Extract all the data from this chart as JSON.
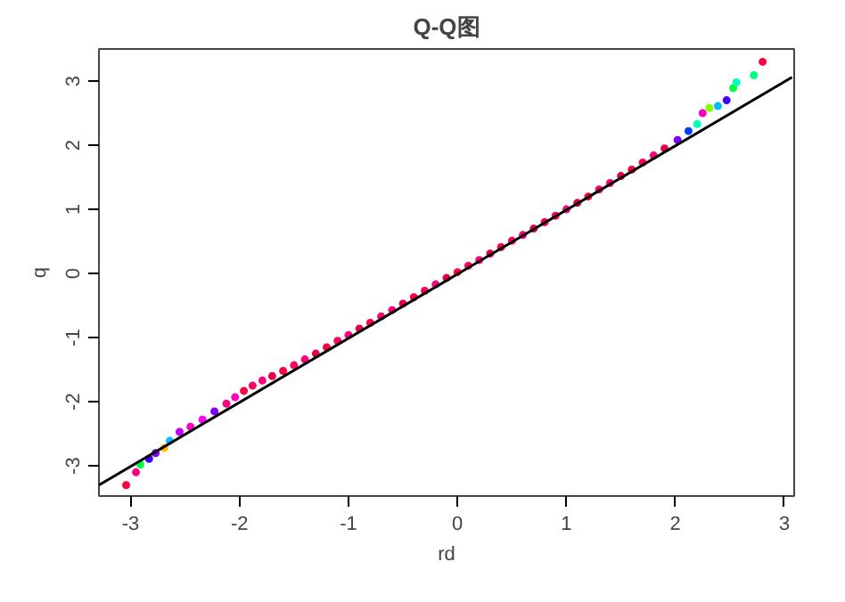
{
  "chart_data": {
    "type": "scatter",
    "title": "Q-Q图",
    "xlabel": "rd",
    "ylabel": "q",
    "xlim": [
      -3.29,
      3.09
    ],
    "ylim": [
      -3.47,
      3.5
    ],
    "xticks": [
      -3,
      -2,
      -1,
      0,
      1,
      2,
      3
    ],
    "yticks": [
      -3,
      -2,
      -1,
      0,
      1,
      2,
      3
    ],
    "grid": false,
    "marker": "circle",
    "series": [
      {
        "x": [
          -3.04,
          -2.95,
          -2.91,
          -2.83,
          -2.77,
          -2.69,
          -2.64,
          -2.55,
          -2.45,
          -2.34,
          -2.23,
          -2.12,
          -2.04,
          -1.96,
          -1.88,
          -1.79,
          -1.7,
          -1.6,
          -1.5,
          -1.4,
          -1.3,
          -1.2,
          -1.1,
          -1.0,
          -0.9,
          -0.8,
          -0.7,
          -0.6,
          -0.5,
          -0.4,
          -0.3,
          -0.2,
          -0.1,
          0,
          0.1,
          0.2,
          0.3,
          0.4,
          0.5,
          0.6,
          0.7,
          0.8,
          0.9,
          1.0,
          1.1,
          1.2,
          1.3,
          1.4,
          1.5,
          1.6,
          1.7,
          1.8,
          1.9,
          2.02,
          2.12,
          2.2,
          2.25,
          2.31,
          2.39,
          2.47,
          2.53,
          2.56,
          2.72,
          2.8
        ],
        "values": [
          -3.3,
          -3.1,
          -2.98,
          -2.89,
          -2.8,
          -2.72,
          -2.61,
          -2.47,
          -2.39,
          -2.28,
          -2.15,
          -2.03,
          -1.93,
          -1.83,
          -1.75,
          -1.67,
          -1.6,
          -1.52,
          -1.43,
          -1.34,
          -1.25,
          -1.15,
          -1.05,
          -0.96,
          -0.86,
          -0.77,
          -0.67,
          -0.57,
          -0.47,
          -0.37,
          -0.27,
          -0.17,
          -0.07,
          0.02,
          0.12,
          0.21,
          0.31,
          0.41,
          0.51,
          0.6,
          0.7,
          0.8,
          0.9,
          1.0,
          1.1,
          1.2,
          1.31,
          1.41,
          1.52,
          1.62,
          1.73,
          1.84,
          1.95,
          2.08,
          2.22,
          2.33,
          2.5,
          2.58,
          2.61,
          2.7,
          2.89,
          2.98,
          3.09,
          3.3
        ],
        "colors": [
          "#ff0040",
          "#ff0080",
          "#00ff40",
          "#4000ff",
          "#8000ff",
          "#ffbf00",
          "#00bfff",
          "#bf00ff",
          "#ff00bf",
          "#ff00ff",
          "#8000ff",
          "#ff0080",
          "#ff00bf",
          "#ff0040",
          "#ff0066",
          "#ff0080",
          "#e6004c",
          "#ff0040",
          "#ff0066",
          "#ff0080",
          "#e6004c",
          "#ff0040",
          "#ff0066",
          "#ff0080",
          "#e6004c",
          "#ff0040",
          "#ff0066",
          "#ff0080",
          "#e6004c",
          "#ff0040",
          "#ff0066",
          "#ff0080",
          "#e6004c",
          "#ff0040",
          "#ff0066",
          "#ff0080",
          "#e6004c",
          "#ff0040",
          "#ff0066",
          "#ff0080",
          "#e6004c",
          "#ff0040",
          "#ff0066",
          "#ff0080",
          "#e6004c",
          "#ff0040",
          "#ff0066",
          "#ff0080",
          "#e6004c",
          "#ff0040",
          "#ff0066",
          "#ff0080",
          "#e6004c",
          "#8000ff",
          "#0040ff",
          "#00ffbf",
          "#ff00bf",
          "#80ff00",
          "#00bfff",
          "#4000ff",
          "#00ff40",
          "#00ffbf",
          "#00ff80",
          "#ff0040"
        ]
      },
      {
        "type": "line",
        "marker": "none",
        "color": "#000000",
        "x": [
          -3.29,
          3.07
        ],
        "values": [
          -3.3,
          3.06
        ]
      }
    ]
  }
}
